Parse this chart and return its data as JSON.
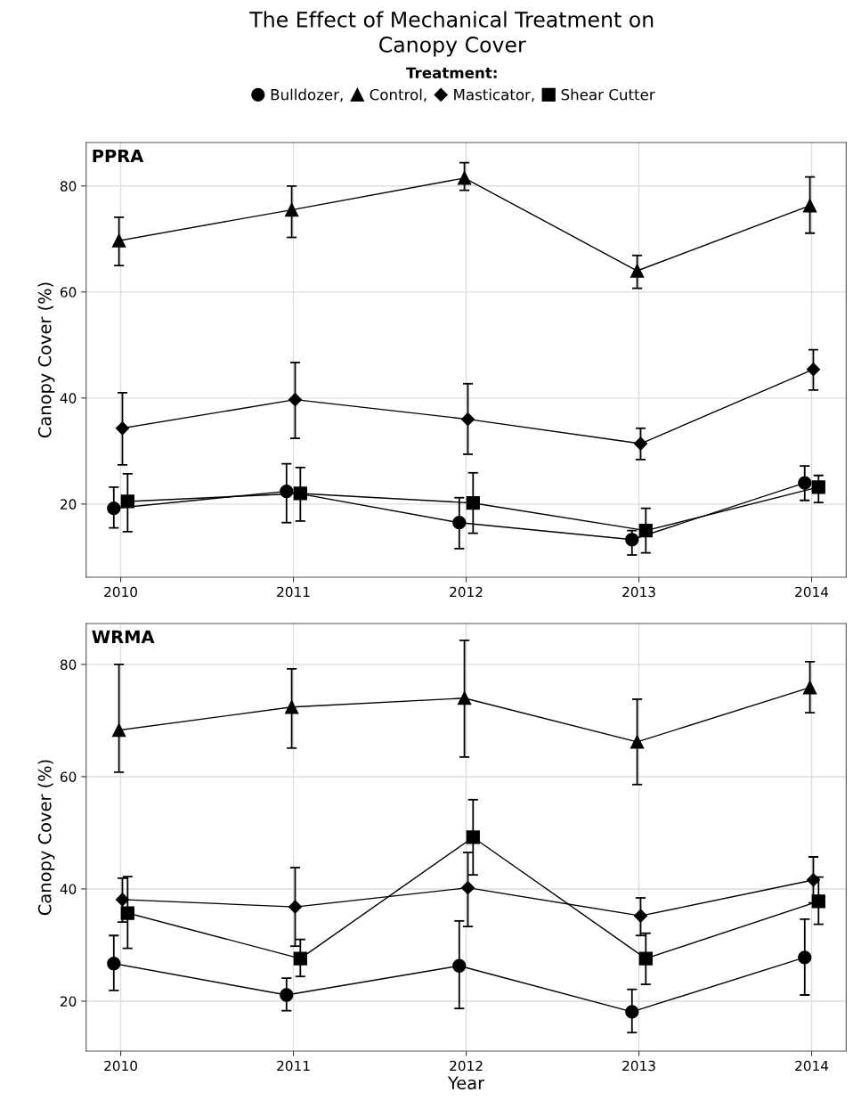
{
  "chart_data": [
    {
      "type": "line",
      "title": "The Effect of Mechanical Treatment on\nCanopy Cover",
      "annotations": [
        "PPRA"
      ],
      "ylabel": "Canopy Cover (%)",
      "legend_title": "Treatment:",
      "legend": "top",
      "xlim": [
        2009.8,
        2014.2
      ],
      "xticks": [
        2010,
        2011,
        2012,
        2013,
        2014
      ],
      "ylim": [
        6.2,
        88.2
      ],
      "yticks": [
        20,
        40,
        60,
        80
      ],
      "grid": true,
      "series": [
        {
          "name": "Bulldozer,",
          "color": "#000000",
          "marker": "circle",
          "x": [
            2009.96,
            2010.96,
            2011.96,
            2012.96,
            2013.96
          ],
          "values": [
            19.2,
            22.4,
            16.5,
            13.3,
            24.0
          ],
          "errors": [
            [
              15.5,
              23.2
            ],
            [
              16.5,
              27.6
            ],
            [
              11.6,
              21.2
            ],
            [
              10.4,
              15.0
            ],
            [
              20.7,
              27.2
            ]
          ]
        },
        {
          "name": "Control,",
          "color": "#000000",
          "marker": "triangle",
          "x": [
            2009.99,
            2010.99,
            2011.99,
            2012.99,
            2013.99
          ],
          "values": [
            69.7,
            75.5,
            81.5,
            64.0,
            76.3
          ],
          "errors": [
            [
              65.0,
              74.1
            ],
            [
              70.3,
              80.0
            ],
            [
              79.2,
              84.4
            ],
            [
              60.7,
              66.9
            ],
            [
              71.1,
              81.7
            ]
          ]
        },
        {
          "name": "Masticator,",
          "color": "#000000",
          "marker": "diamond",
          "x": [
            2010.01,
            2011.01,
            2012.01,
            2013.01,
            2014.01
          ],
          "values": [
            34.3,
            39.7,
            36.0,
            31.4,
            45.4
          ],
          "errors": [
            [
              27.4,
              41.0
            ],
            [
              32.4,
              46.7
            ],
            [
              29.4,
              42.7
            ],
            [
              28.4,
              34.3
            ],
            [
              41.5,
              49.1
            ]
          ]
        },
        {
          "name": "Shear Cutter",
          "color": "#000000",
          "marker": "square",
          "x": [
            2010.04,
            2011.04,
            2012.04,
            2013.04,
            2014.04
          ],
          "values": [
            20.5,
            22.0,
            20.2,
            15.0,
            23.2
          ],
          "errors": [
            [
              14.8,
              25.7
            ],
            [
              16.8,
              26.9
            ],
            [
              14.5,
              25.9
            ],
            [
              10.8,
              19.2
            ],
            [
              20.3,
              25.4
            ]
          ]
        }
      ]
    },
    {
      "type": "line",
      "annotations": [
        "WRMA"
      ],
      "xlabel": "Year",
      "ylabel": "Canopy Cover (%)",
      "xlim": [
        2009.8,
        2014.2
      ],
      "xticks": [
        2010,
        2011,
        2012,
        2013,
        2014
      ],
      "ylim": [
        11.1,
        87.3
      ],
      "yticks": [
        20,
        40,
        60,
        80
      ],
      "grid": true,
      "series": [
        {
          "color": "#000000",
          "marker": "circle",
          "x": [
            2009.96,
            2010.96,
            2011.96,
            2012.96,
            2013.96
          ],
          "values": [
            26.7,
            21.1,
            26.3,
            18.1,
            27.8
          ],
          "errors": [
            [
              21.9,
              31.7
            ],
            [
              18.3,
              24.1
            ],
            [
              18.7,
              34.3
            ],
            [
              14.4,
              22.1
            ],
            [
              21.1,
              34.6
            ]
          ]
        },
        {
          "color": "#000000",
          "marker": "triangle",
          "x": [
            2009.99,
            2010.99,
            2011.99,
            2012.99,
            2013.99
          ],
          "values": [
            68.3,
            72.4,
            74.0,
            66.2,
            75.9
          ],
          "errors": [
            [
              60.8,
              80.0
            ],
            [
              65.1,
              79.2
            ],
            [
              63.5,
              84.3
            ],
            [
              58.6,
              73.8
            ],
            [
              71.4,
              80.5
            ]
          ]
        },
        {
          "color": "#000000",
          "marker": "diamond",
          "x": [
            2010.01,
            2011.01,
            2012.01,
            2013.01,
            2014.01
          ],
          "values": [
            38.1,
            36.8,
            40.2,
            35.2,
            41.6
          ],
          "errors": [
            [
              34.1,
              41.9
            ],
            [
              29.8,
              43.8
            ],
            [
              33.3,
              46.5
            ],
            [
              31.7,
              38.4
            ],
            [
              37.5,
              45.7
            ]
          ]
        },
        {
          "color": "#000000",
          "marker": "square",
          "x": [
            2010.04,
            2011.04,
            2012.04,
            2013.04,
            2014.04
          ],
          "values": [
            35.7,
            27.6,
            49.2,
            27.6,
            37.8
          ],
          "errors": [
            [
              29.4,
              42.2
            ],
            [
              24.4,
              31.0
            ],
            [
              42.5,
              55.9
            ],
            [
              23.0,
              32.1
            ],
            [
              33.7,
              42.1
            ]
          ]
        }
      ]
    }
  ]
}
